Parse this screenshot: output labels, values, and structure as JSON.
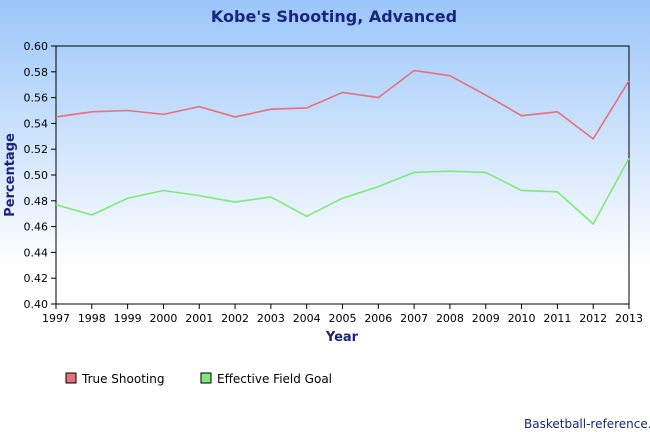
{
  "chart_data": {
    "type": "line",
    "title": "Kobe's Shooting, Advanced",
    "xlabel": "Year",
    "ylabel": "Percentage",
    "x": [
      "1997",
      "1998",
      "1999",
      "2000",
      "2001",
      "2002",
      "2003",
      "2004",
      "2005",
      "2006",
      "2007",
      "2008",
      "2009",
      "2010",
      "2011",
      "2012",
      "2013"
    ],
    "ylim": [
      0.4,
      0.6
    ],
    "yticks": [
      "0.60",
      "0.58",
      "0.56",
      "0.54",
      "0.52",
      "0.50",
      "0.48",
      "0.46",
      "0.44",
      "0.42",
      "0.40"
    ],
    "grid": false,
    "legend_position": "bottom-left",
    "series": [
      {
        "name": "True Shooting",
        "color": "#e8707d",
        "values": [
          0.545,
          0.549,
          0.55,
          0.547,
          0.553,
          0.545,
          0.551,
          0.552,
          0.564,
          0.56,
          0.581,
          0.577,
          0.562,
          0.546,
          0.549,
          0.528,
          0.573
        ]
      },
      {
        "name": "Effective Field Goal",
        "color": "#7dea78",
        "values": [
          0.477,
          0.469,
          0.482,
          0.488,
          0.484,
          0.479,
          0.483,
          0.468,
          0.482,
          0.491,
          0.502,
          0.503,
          0.502,
          0.488,
          0.487,
          0.462,
          0.513
        ]
      }
    ],
    "background": {
      "top": "#9ac6fa",
      "bottom": "#ffffff"
    }
  },
  "credit": "Basketball-reference."
}
